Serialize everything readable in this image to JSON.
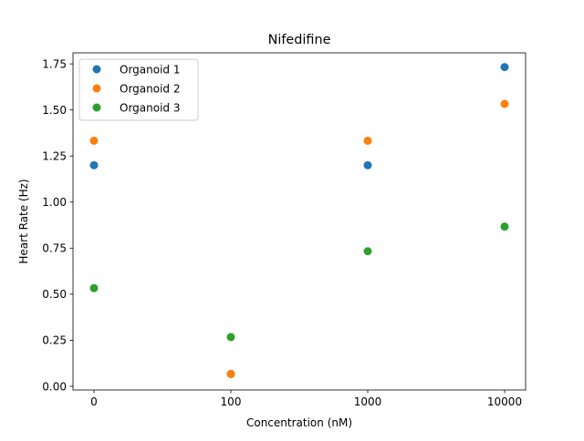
{
  "chart_data": {
    "type": "scatter",
    "title": "Nifedifine",
    "xlabel": "Concentration (nM)",
    "ylabel": "Heart Rate (Hz)",
    "categories": [
      "0",
      "100",
      "1000",
      "10000"
    ],
    "ylim": [
      -0.02,
      1.81
    ],
    "yticks": [
      0.0,
      0.25,
      0.5,
      0.75,
      1.0,
      1.25,
      1.5,
      1.75
    ],
    "ytick_labels": [
      "0.00",
      "0.25",
      "0.50",
      "0.75",
      "1.00",
      "1.25",
      "1.50",
      "1.75"
    ],
    "grid": false,
    "legend_position": "upper-left",
    "series": [
      {
        "name": "Organoid 1",
        "color": "#1f77b4",
        "values": [
          1.2,
          0.067,
          1.2,
          1.733
        ]
      },
      {
        "name": "Organoid 2",
        "color": "#ff7f0e",
        "values": [
          1.333,
          0.067,
          1.333,
          1.533
        ]
      },
      {
        "name": "Organoid 3",
        "color": "#2ca02c",
        "values": [
          0.533,
          0.267,
          0.733,
          0.867
        ]
      }
    ]
  }
}
